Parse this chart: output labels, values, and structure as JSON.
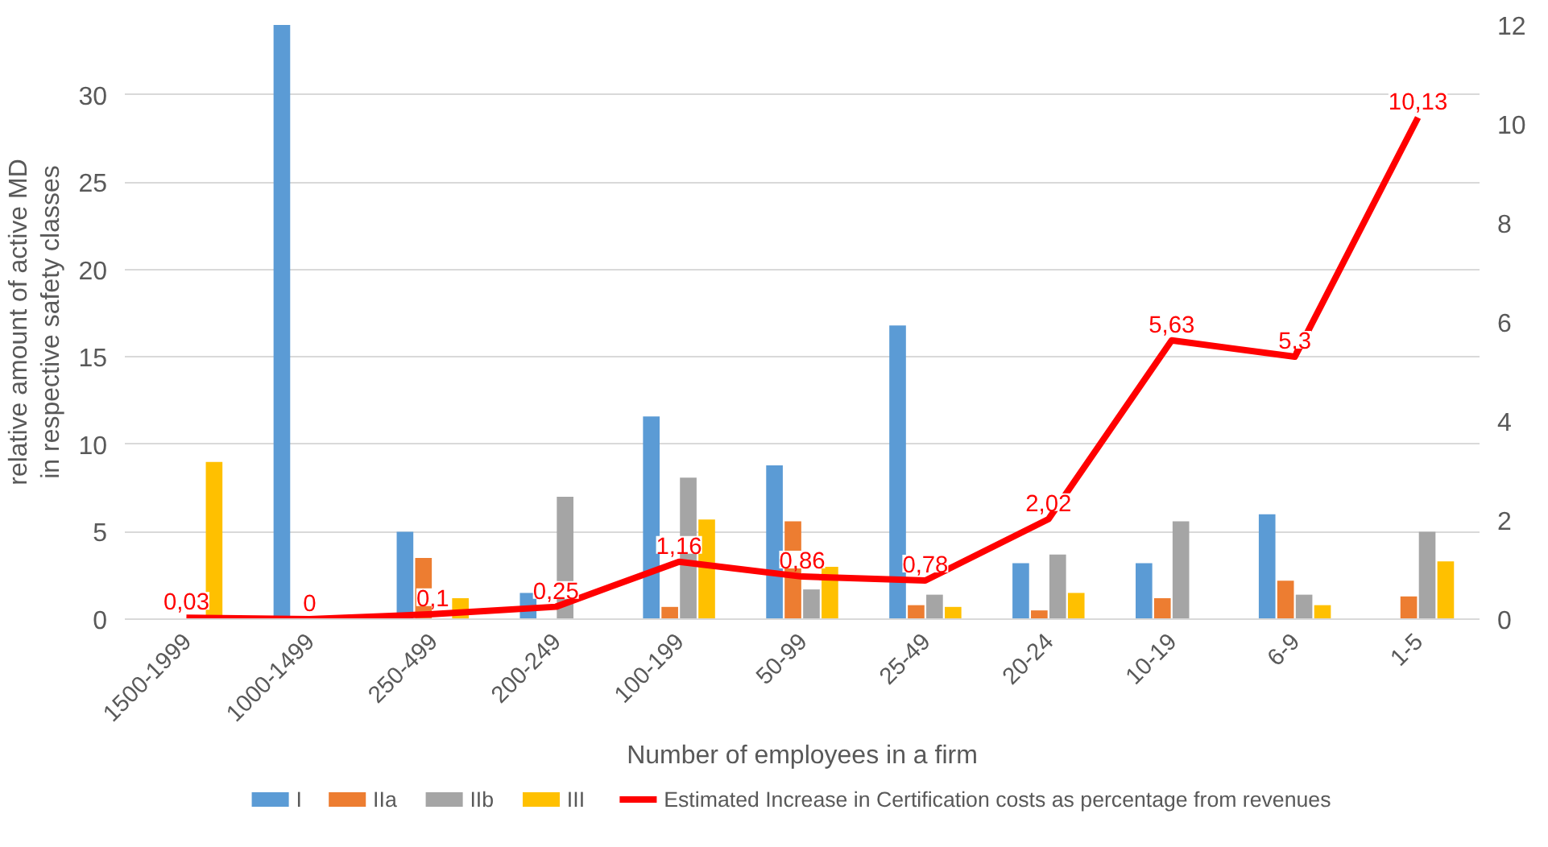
{
  "chart_data": {
    "type": "bar",
    "xlabel": "Number of employees in a firm",
    "ylabel": "relative amount of active MD in respective safety classes",
    "categories": [
      "1500-1999",
      "1000-1499",
      "250-499",
      "200-249",
      "100-199",
      "50-99",
      "25-49",
      "20-24",
      "10-19",
      "6-9",
      "1-5"
    ],
    "series": [
      {
        "name": "I",
        "color": "#5b9bd5",
        "values": [
          0,
          34,
          5.0,
          1.5,
          11.6,
          8.8,
          16.8,
          3.2,
          3.2,
          6.0,
          0
        ]
      },
      {
        "name": "IIa",
        "color": "#ed7d31",
        "values": [
          0,
          0,
          3.5,
          0,
          0.7,
          5.6,
          0.8,
          0.5,
          1.2,
          2.2,
          1.3
        ]
      },
      {
        "name": "IIb",
        "color": "#a5a5a5",
        "values": [
          0,
          0,
          0,
          7.0,
          8.1,
          1.7,
          1.4,
          3.7,
          5.6,
          1.4,
          5.0
        ]
      },
      {
        "name": "III",
        "color": "#ffc000",
        "values": [
          9.0,
          0,
          1.2,
          0,
          5.7,
          3.0,
          0.7,
          1.5,
          0,
          0.8,
          3.3
        ]
      },
      {
        "name": "Estimated Increase in Certification costs as percentage from revenues",
        "type": "line",
        "axis": "y2",
        "color": "#ff0000",
        "values": [
          0.03,
          0,
          0.1,
          0.25,
          1.16,
          0.86,
          0.78,
          2.02,
          5.63,
          5.3,
          10.13
        ],
        "value_labels": [
          "0,03",
          "0",
          "0,1",
          "0,25",
          "1,16",
          "0,86",
          "0,78",
          "2,02",
          "5,63",
          "5,3",
          "10,13"
        ]
      }
    ],
    "ylim": [
      0,
      34
    ],
    "yticks": [
      0,
      5,
      10,
      15,
      20,
      25,
      30
    ],
    "y2lim": [
      0,
      12
    ],
    "y2ticks": [
      0,
      2,
      4,
      6,
      8,
      10,
      12
    ],
    "grid": "y",
    "legend": "bottom"
  }
}
